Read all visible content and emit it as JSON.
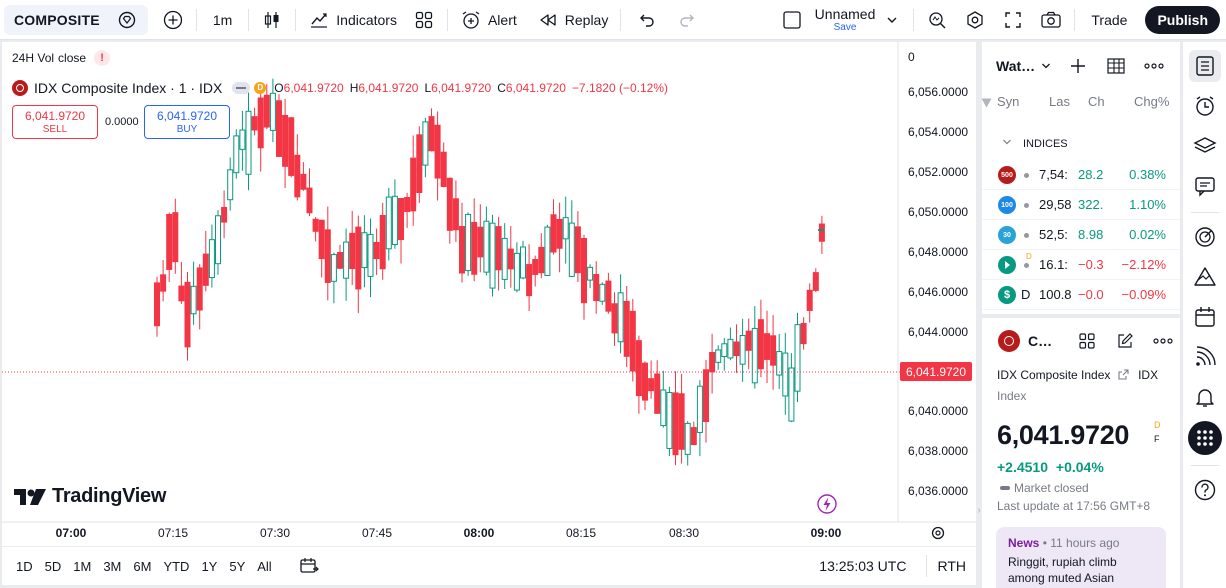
{
  "topbar": {
    "symbol": "COMPOSITE",
    "interval": "1m",
    "indicators": "Indicators",
    "alert": "Alert",
    "replay": "Replay",
    "layout_name": "Unnamed",
    "save": "Save",
    "trade": "Trade",
    "publish": "Publish"
  },
  "chart": {
    "vol_label": "24H Vol",
    "close_label": "close",
    "alert_mark": "!",
    "title": "IDX Composite Index · 1 · IDX",
    "ohlc": {
      "o_label": "O",
      "o": "6,041.9720",
      "h_label": "H",
      "h": "6,041.9720",
      "l_label": "L",
      "l": "6,041.9720",
      "c_label": "C",
      "c": "6,041.9720",
      "change": "−7.1820 (−0.12%)"
    },
    "sell_price": "6,041.9720",
    "sell_label": "SELL",
    "spread": "0.0000",
    "buy_price": "6,041.9720",
    "buy_label": "BUY",
    "logo_text": "TradingView",
    "current_price": "6,041.9720",
    "price_ticks": [
      "0",
      "6,056.0000",
      "6,054.0000",
      "6,052.0000",
      "6,050.0000",
      "6,048.0000",
      "6,046.0000",
      "6,044.0000",
      "6,040.0000",
      "6,038.0000",
      "6,036.0000"
    ],
    "time_ticks": [
      "07:00",
      "07:15",
      "07:30",
      "07:45",
      "08:00",
      "08:15",
      "08:30",
      "09:00"
    ],
    "colors": {
      "up": "#089981",
      "down": "#f23645",
      "price_line": "#f23645"
    }
  },
  "bottombar": {
    "ranges": [
      "1D",
      "5D",
      "1M",
      "3M",
      "6M",
      "YTD",
      "1Y",
      "5Y",
      "All"
    ],
    "clock": "13:25:03 UTC",
    "rth": "RTH"
  },
  "watchlist": {
    "title": "Wat…",
    "columns": [
      "Syn",
      "Las",
      "Ch",
      "Chg%"
    ],
    "section": "INDICES",
    "rows": [
      {
        "badge": "500",
        "badge_color": "#b71c1c",
        "last": "7,54:",
        "ch": "28.2",
        "chg": "0.38%",
        "dir": "pos"
      },
      {
        "badge": "100",
        "badge_color": "#1e88e5",
        "last": "29,58",
        "ch": "322.",
        "chg": "1.10%",
        "dir": "pos"
      },
      {
        "badge": "30",
        "badge_color": "#29a3d6",
        "last": "52,5:",
        "ch": "8.98",
        "chg": "0.02%",
        "dir": "pos"
      },
      {
        "badge": "",
        "badge_color": "#089981",
        "last": "16.1:",
        "ch": "−0.3",
        "chg": "−2.12%",
        "dir": "neg",
        "flag": "D"
      },
      {
        "badge": "$",
        "badge_color": "#089981",
        "last": "100.8",
        "ch": "−0.0",
        "chg": "−0.09%",
        "dir": "neg",
        "prefix": "D"
      }
    ]
  },
  "details": {
    "short_name": "C…",
    "full_name": "IDX Composite Index",
    "exchange": "IDX",
    "type": "Index",
    "price": "6,041.9720",
    "price_suffix": "D",
    "price_suffix2": "F",
    "change": "+2.4510",
    "change_pct": "+0.04%",
    "status": "Market closed",
    "last_update": "Last update at 17:56 GMT+8",
    "news_source": "News",
    "news_time": "11 hours ago",
    "news_line1": "Ringgit, rupiah climb",
    "news_line2": "among muted Asian"
  }
}
